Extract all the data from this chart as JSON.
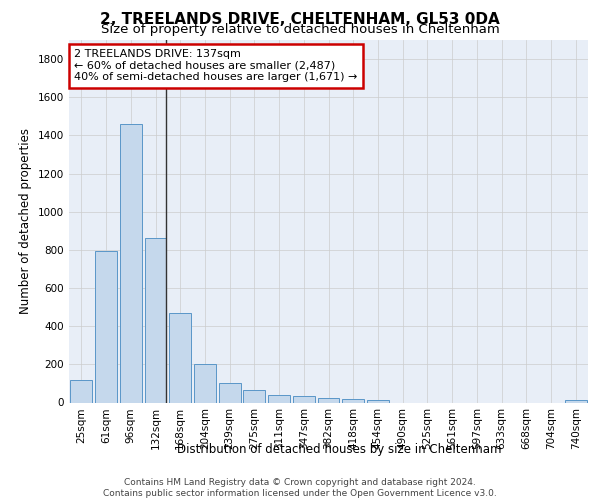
{
  "title": "2, TREELANDS DRIVE, CHELTENHAM, GL53 0DA",
  "subtitle": "Size of property relative to detached houses in Cheltenham",
  "xlabel": "Distribution of detached houses by size in Cheltenham",
  "ylabel": "Number of detached properties",
  "categories": [
    "25sqm",
    "61sqm",
    "96sqm",
    "132sqm",
    "168sqm",
    "204sqm",
    "239sqm",
    "275sqm",
    "311sqm",
    "347sqm",
    "382sqm",
    "418sqm",
    "454sqm",
    "490sqm",
    "525sqm",
    "561sqm",
    "597sqm",
    "633sqm",
    "668sqm",
    "704sqm",
    "740sqm"
  ],
  "values": [
    120,
    795,
    1460,
    860,
    470,
    200,
    100,
    65,
    40,
    35,
    25,
    20,
    15,
    0,
    0,
    0,
    0,
    0,
    0,
    0,
    15
  ],
  "bar_color": "#c5d8ec",
  "bar_edge_color": "#5a96c8",
  "highlight_bar_index": 3,
  "highlight_line_color": "#333333",
  "annotation_text": "2 TREELANDS DRIVE: 137sqm\n← 60% of detached houses are smaller (2,487)\n40% of semi-detached houses are larger (1,671) →",
  "annotation_box_color": "#ffffff",
  "annotation_box_edge_color": "#cc0000",
  "ylim": [
    0,
    1900
  ],
  "yticks": [
    0,
    200,
    400,
    600,
    800,
    1000,
    1200,
    1400,
    1600,
    1800
  ],
  "footer_text": "Contains HM Land Registry data © Crown copyright and database right 2024.\nContains public sector information licensed under the Open Government Licence v3.0.",
  "grid_color": "#cccccc",
  "background_color": "#e8eef7",
  "title_fontsize": 11,
  "subtitle_fontsize": 9.5,
  "axis_label_fontsize": 8.5,
  "tick_fontsize": 7.5,
  "annotation_fontsize": 8,
  "footer_fontsize": 6.5
}
